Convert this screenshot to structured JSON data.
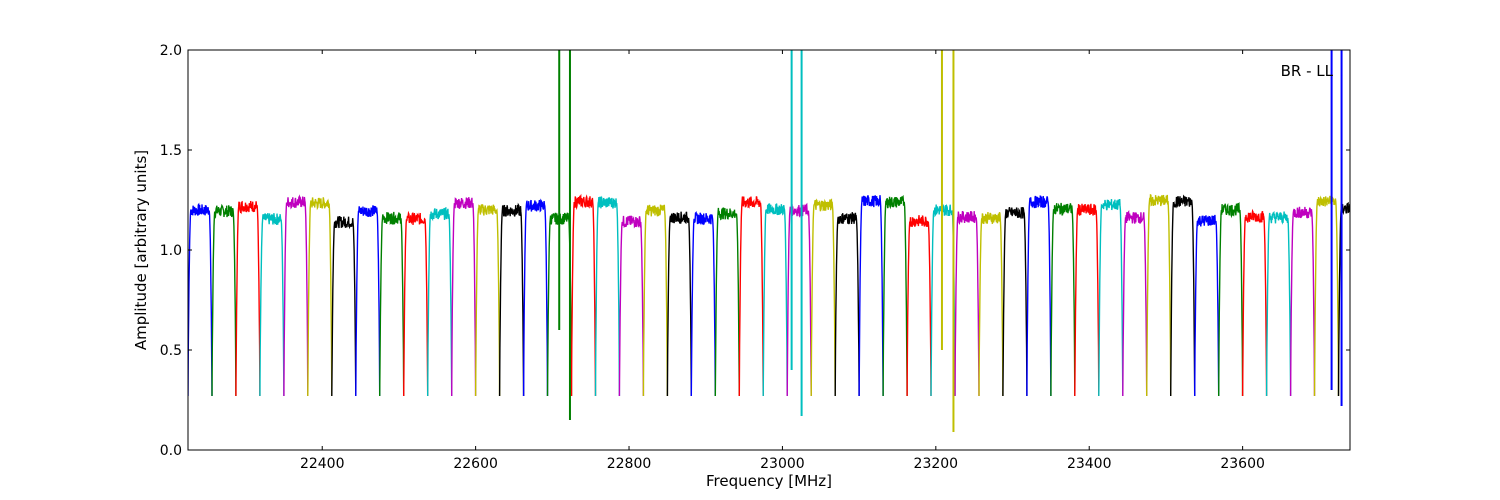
{
  "chart_data": {
    "type": "line",
    "title": "",
    "annotation": "BR - LL",
    "xlabel": "Frequency [MHz]",
    "ylabel": "Amplitude [arbitrary units]",
    "xlim": [
      22225,
      23740
    ],
    "ylim": [
      0.0,
      2.0
    ],
    "xticks": [
      22400,
      22600,
      22800,
      23000,
      23200,
      23400,
      23600
    ],
    "xtick_labels": [
      "22400",
      "22600",
      "22800",
      "23000",
      "23200",
      "23400",
      "23600"
    ],
    "yticks": [
      0.0,
      0.5,
      1.0,
      1.5,
      2.0
    ],
    "ytick_labels": [
      "0.0",
      "0.5",
      "1.0",
      "1.5",
      "2.0"
    ],
    "grid": false,
    "legend": "none",
    "channel_colors": [
      "#0000ff",
      "#008000",
      "#ff0000",
      "#00bfbf",
      "#bf00bf",
      "#bfbf00",
      "#000000"
    ],
    "channel_span_mhz": 31.25,
    "channel_plateau": 1.2,
    "channel_edge_minimum": 0.27,
    "spikes": [
      {
        "x": 22709,
        "ymin": 0.6,
        "ymax": 2.0,
        "color": "#008000"
      },
      {
        "x": 22723,
        "ymin": 0.15,
        "ymax": 2.0,
        "color": "#008000"
      },
      {
        "x": 23012,
        "ymin": 0.4,
        "ymax": 2.0,
        "color": "#00bfbf"
      },
      {
        "x": 23025,
        "ymin": 0.17,
        "ymax": 2.0,
        "color": "#00bfbf"
      },
      {
        "x": 23208,
        "ymin": 0.5,
        "ymax": 2.0,
        "color": "#bfbf00"
      },
      {
        "x": 23223,
        "ymin": 0.09,
        "ymax": 2.0,
        "color": "#bfbf00"
      },
      {
        "x": 23716,
        "ymin": 0.3,
        "ymax": 2.0,
        "color": "#0000ff"
      },
      {
        "x": 23729,
        "ymin": 0.22,
        "ymax": 2.0,
        "color": "#0000ff"
      }
    ]
  }
}
